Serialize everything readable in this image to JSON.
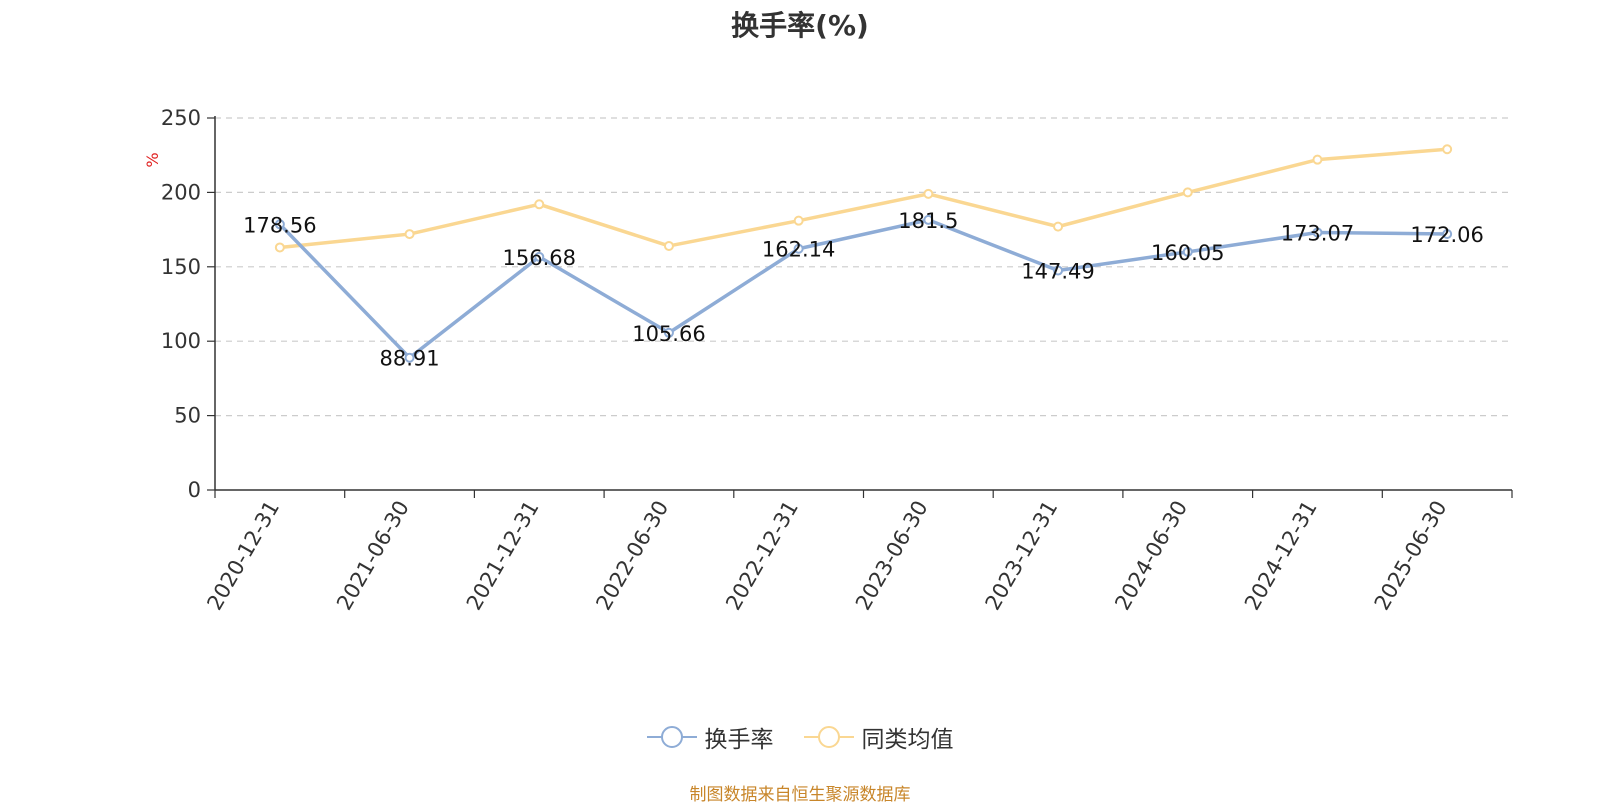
{
  "title": "换手率(%)",
  "source": "制图数据来自恒生聚源数据库",
  "chart_data": {
    "type": "line",
    "title": "换手率(%)",
    "ylabel": "%",
    "ylim": [
      0,
      250
    ],
    "yticks": [
      0,
      50,
      100,
      150,
      200,
      250
    ],
    "grid": true,
    "legend_position": "bottom",
    "categories": [
      "2020-12-31",
      "2021-06-30",
      "2021-12-31",
      "2022-06-30",
      "2022-12-31",
      "2023-06-30",
      "2023-12-31",
      "2024-06-30",
      "2024-12-31",
      "2025-06-30"
    ],
    "series": [
      {
        "name": "换手率",
        "color": "#8eacd6",
        "values": [
          178.56,
          88.91,
          156.68,
          105.66,
          162.14,
          181.5,
          147.49,
          160.05,
          173.07,
          172.06
        ],
        "labels": true
      },
      {
        "name": "同类均值",
        "color": "#fad792",
        "values": [
          163,
          172,
          192,
          164,
          181,
          199,
          177,
          200,
          222,
          229
        ],
        "labels": false
      }
    ]
  },
  "legend": [
    {
      "label": "换手率",
      "icon": "circle-line-icon",
      "color": "#8eacd6"
    },
    {
      "label": "同类均值",
      "icon": "circle-line-icon",
      "color": "#fad792"
    }
  ]
}
